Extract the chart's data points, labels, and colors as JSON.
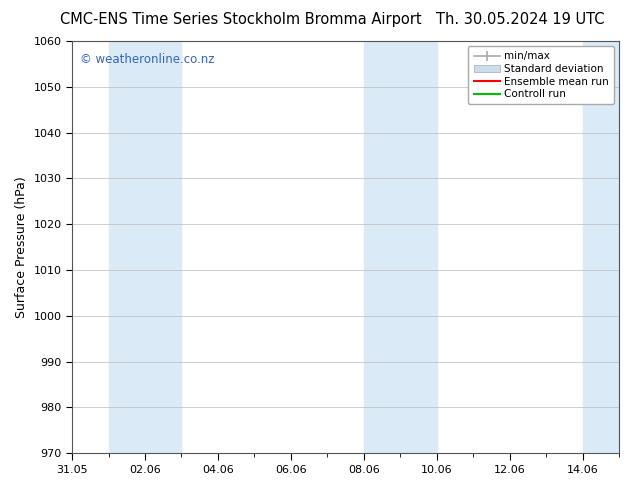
{
  "title_left": "CMC-ENS Time Series Stockholm Bromma Airport",
  "title_right": "Th. 30.05.2024 19 UTC",
  "ylabel": "Surface Pressure (hPa)",
  "ylim": [
    970,
    1060
  ],
  "yticks": [
    970,
    980,
    990,
    1000,
    1010,
    1020,
    1030,
    1040,
    1050,
    1060
  ],
  "xlim": [
    0,
    15
  ],
  "xtick_labels": [
    "31.05",
    "02.06",
    "04.06",
    "06.06",
    "08.06",
    "10.06",
    "12.06",
    "14.06"
  ],
  "xtick_positions": [
    0,
    2,
    4,
    6,
    8,
    10,
    12,
    14
  ],
  "shaded_bands": [
    {
      "x_start": 1.0,
      "x_end": 3.0,
      "color": "#daeaf7"
    },
    {
      "x_start": 8.0,
      "x_end": 10.0,
      "color": "#daeaf7"
    },
    {
      "x_start": 14.0,
      "x_end": 15.0,
      "color": "#daeaf7"
    }
  ],
  "watermark_text": "© weatheronline.co.nz",
  "watermark_color": "#3366bb",
  "legend_entries": [
    {
      "label": "min/max",
      "color": "#aaaaaa",
      "type": "errorbar"
    },
    {
      "label": "Standard deviation",
      "color": "#ccdded",
      "type": "band"
    },
    {
      "label": "Ensemble mean run",
      "color": "#ff0000",
      "type": "line"
    },
    {
      "label": "Controll run",
      "color": "#00bb00",
      "type": "line"
    }
  ],
  "bg_color": "#ffffff",
  "grid_color": "#bbbbbb",
  "title_fontsize": 10.5,
  "axis_label_fontsize": 9,
  "tick_fontsize": 8,
  "legend_fontsize": 7.5
}
